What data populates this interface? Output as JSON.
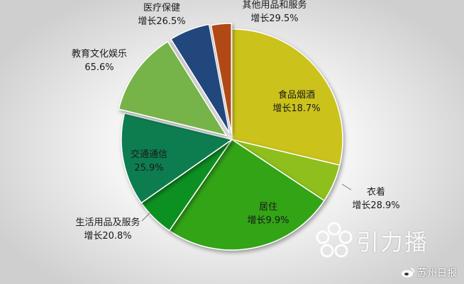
{
  "chart_data": {
    "type": "pie",
    "title": "",
    "slices": [
      {
        "name": "食品烟酒",
        "label": "增长18.7%",
        "value": 28.2,
        "color": "#cbc21a"
      },
      {
        "name": "衣着",
        "label": "增长28.9%",
        "value": 5.5,
        "color": "#8fbf1e"
      },
      {
        "name": "居住",
        "label": "增长9.9%",
        "value": 24.8,
        "color": "#33a413"
      },
      {
        "name": "生活用品及服务",
        "label": "增长20.8%",
        "value": 5.6,
        "color": "#0f9020"
      },
      {
        "name": "交通通信",
        "label": "25.9%",
        "value": 13.3,
        "color": "#0f7d50"
      },
      {
        "name": "教育文化娱乐",
        "label": "65.6%",
        "value": 12.1,
        "color": "#76b349"
      },
      {
        "name": "医疗保健",
        "label": "增长26.5%",
        "value": 5.8,
        "color": "#23467d"
      },
      {
        "name": "其他用品和服务",
        "label": "增长29.5%",
        "value": 2.9,
        "color": "#b14a12"
      }
    ]
  },
  "watermark": {
    "brand": "引力播",
    "source": "苏州日报"
  }
}
